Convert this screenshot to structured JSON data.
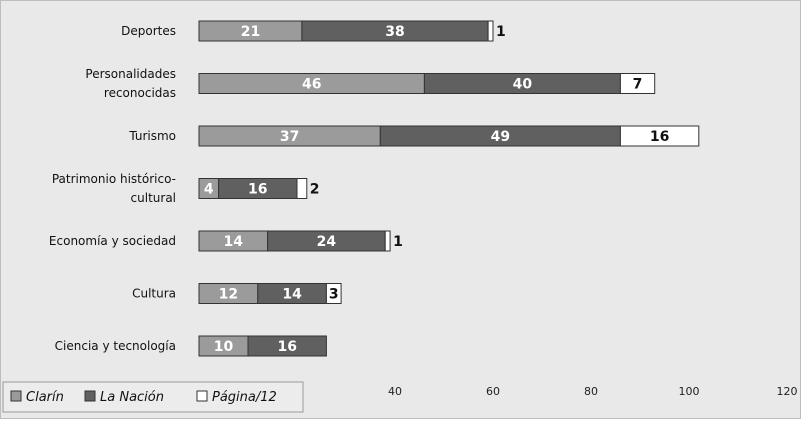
{
  "chart_data": {
    "type": "bar",
    "orientation": "horizontal",
    "stacked": true,
    "categories": [
      [
        "Deportes"
      ],
      [
        "Personalidades",
        "reconocidas"
      ],
      [
        "Turismo"
      ],
      [
        "Patrimonio histórico-",
        "cultural"
      ],
      [
        "Economía y sociedad"
      ],
      [
        "Cultura"
      ],
      [
        "Ciencia y tecnología"
      ]
    ],
    "series": [
      {
        "name": "Clarín",
        "color": "#9b9b9b",
        "values": [
          21,
          46,
          37,
          4,
          14,
          12,
          10
        ]
      },
      {
        "name": "La Nación",
        "color": "#606060",
        "values": [
          38,
          40,
          49,
          16,
          24,
          14,
          16
        ]
      },
      {
        "name": "Página/12",
        "color": "#ffffff",
        "values": [
          1,
          7,
          16,
          2,
          1,
          3,
          0
        ]
      }
    ],
    "xlim": [
      0,
      120
    ],
    "xticks": [
      40,
      60,
      80,
      100,
      120
    ],
    "legend": {
      "position": "bottom-left",
      "entries": [
        "Clarín",
        "La Nación",
        "Página/12"
      ]
    },
    "grid": false
  }
}
